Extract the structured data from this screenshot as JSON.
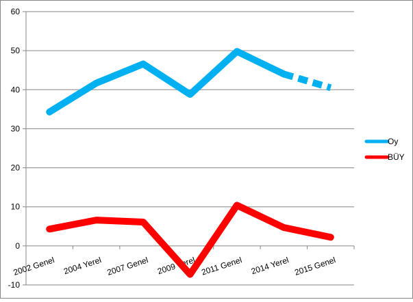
{
  "chart_data": {
    "type": "line",
    "categories": [
      "2002 Genel",
      "2004 Yerel",
      "2007 Genel",
      "2009 Yerel",
      "2011 Genel",
      "2014 Yerel",
      "2015 Genel"
    ],
    "ylim": [
      -10,
      60
    ],
    "yticks": [
      -10,
      0,
      10,
      20,
      30,
      40,
      50,
      60
    ],
    "grid": true,
    "legend_position": "right",
    "series": [
      {
        "name": "Oy",
        "color": "#00B0F0",
        "values": [
          34.3,
          41.7,
          46.6,
          38.8,
          49.8,
          44.0,
          40.5
        ],
        "dashed_last_segment": true
      },
      {
        "name": "BÜY",
        "color": "#FF0000",
        "values": [
          4.3,
          6.6,
          6.1,
          -7.3,
          10.4,
          4.7,
          2.2
        ],
        "dashed_last_segment": false
      }
    ]
  }
}
